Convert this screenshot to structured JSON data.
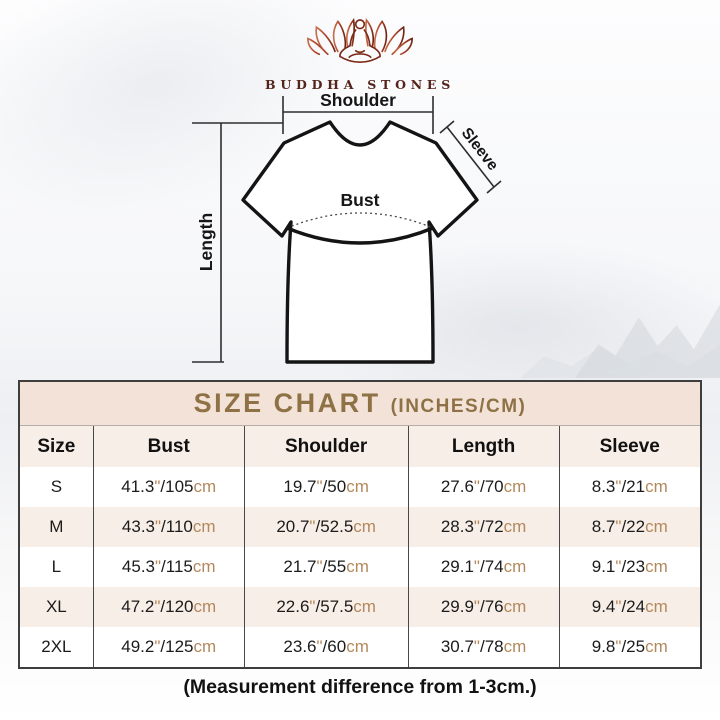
{
  "brand": {
    "name": "BUDDHA STONES"
  },
  "diagram": {
    "shoulder_label": "Shoulder",
    "sleeve_label": "Sleeve",
    "bust_label": "Bust",
    "length_label": "Length"
  },
  "size_chart": {
    "title": "SIZE CHART",
    "title_suffix": "(INCHES/CM)",
    "columns": [
      "Size",
      "Bust",
      "Shoulder",
      "Length",
      "Sleeve"
    ],
    "inch_mark": "\"",
    "cm_label": "cm",
    "rows": [
      {
        "size": "S",
        "bust": {
          "in": "41.3",
          "cm": "105"
        },
        "shoulder": {
          "in": "19.7",
          "cm": "50"
        },
        "length": {
          "in": "27.6",
          "cm": "70"
        },
        "sleeve": {
          "in": "8.3",
          "cm": "21"
        }
      },
      {
        "size": "M",
        "bust": {
          "in": "43.3",
          "cm": "110"
        },
        "shoulder": {
          "in": "20.7",
          "cm": "52.5"
        },
        "length": {
          "in": "28.3",
          "cm": "72"
        },
        "sleeve": {
          "in": "8.7",
          "cm": "22"
        }
      },
      {
        "size": "L",
        "bust": {
          "in": "45.3",
          "cm": "115"
        },
        "shoulder": {
          "in": "21.7",
          "cm": "55"
        },
        "length": {
          "in": "29.1",
          "cm": "74"
        },
        "sleeve": {
          "in": "9.1",
          "cm": "23"
        }
      },
      {
        "size": "XL",
        "bust": {
          "in": "47.2",
          "cm": "120"
        },
        "shoulder": {
          "in": "22.6",
          "cm": "57.5"
        },
        "length": {
          "in": "29.9",
          "cm": "76"
        },
        "sleeve": {
          "in": "9.4",
          "cm": "24"
        }
      },
      {
        "size": "2XL",
        "bust": {
          "in": "49.2",
          "cm": "125"
        },
        "shoulder": {
          "in": "23.6",
          "cm": "60"
        },
        "length": {
          "in": "30.7",
          "cm": "78"
        },
        "sleeve": {
          "in": "9.8",
          "cm": "25"
        }
      }
    ]
  },
  "footer": {
    "note": "(Measurement difference from 1-3cm.)"
  },
  "theme": {
    "accent": "#8f7146",
    "unit_color": "#b3885c",
    "title_bg": "#f2e2d7",
    "row_alt_bg": "#f7eee7",
    "table_border": "#3e3e3e",
    "brand_color": "#54241b",
    "logo_gradient_start": "#c66f4b",
    "logo_gradient_end": "#6d2414"
  }
}
